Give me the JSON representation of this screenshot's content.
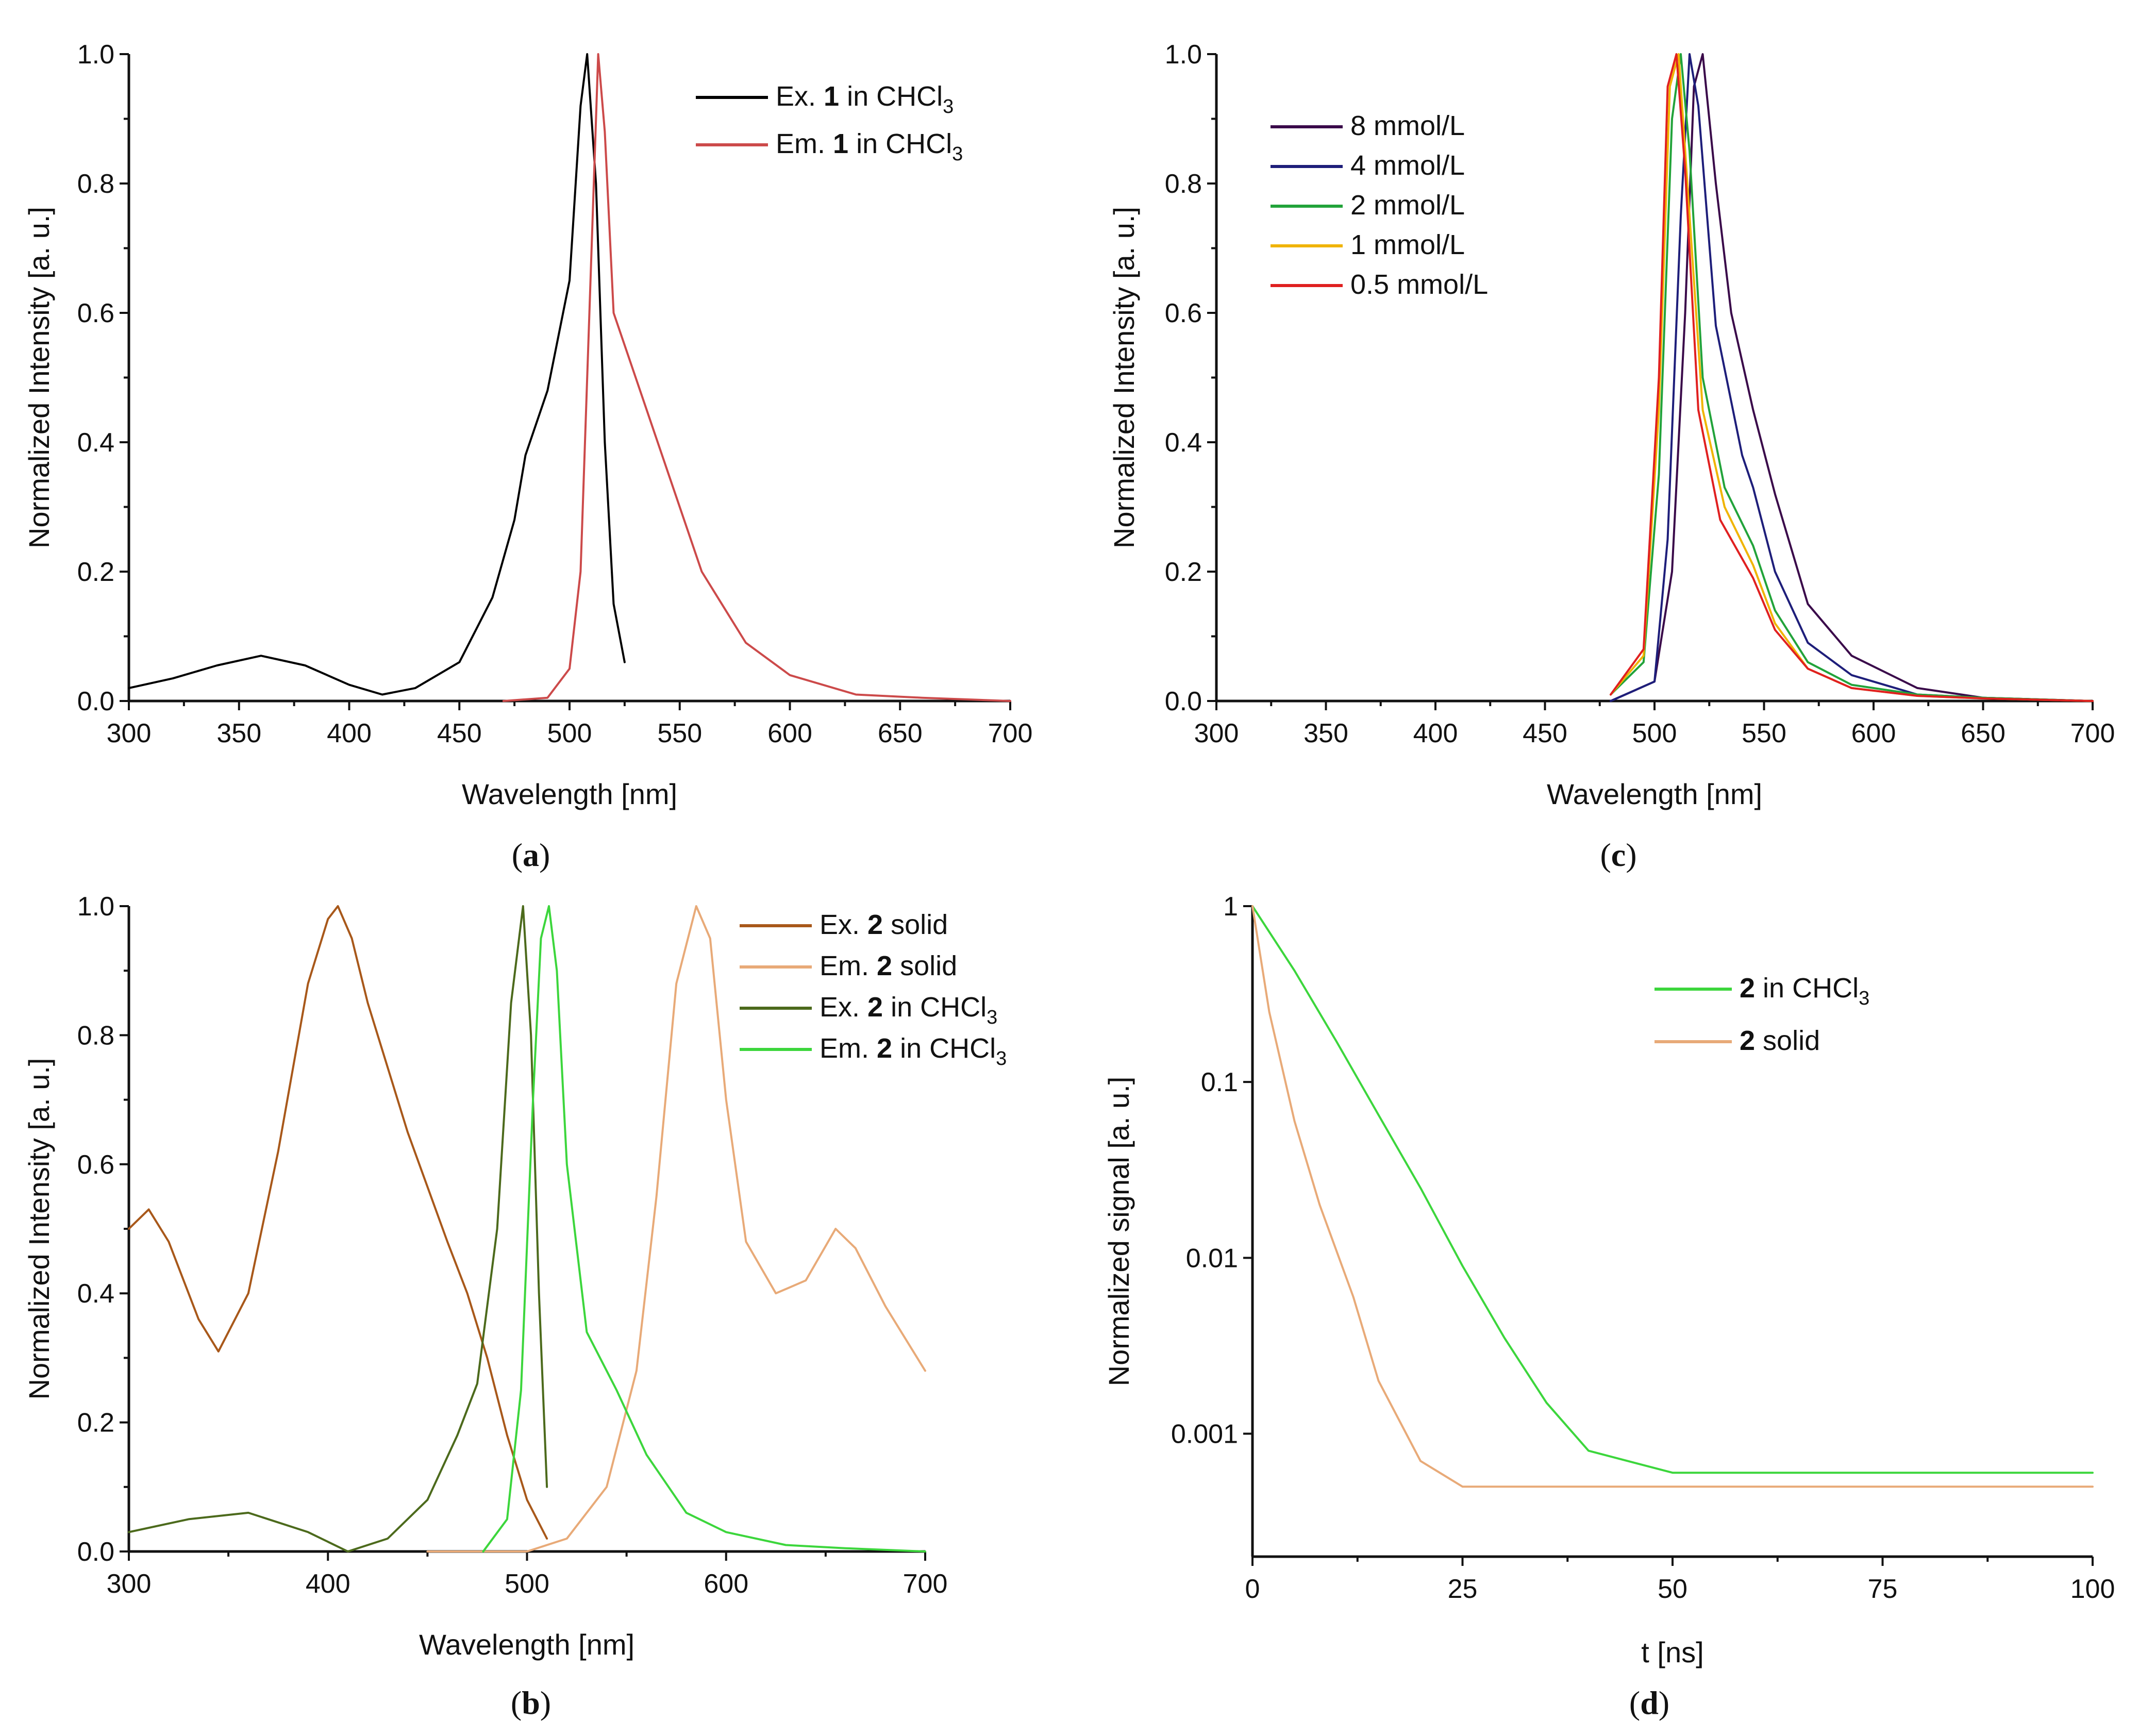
{
  "chart_data": [
    {
      "panel": "a",
      "type": "line",
      "xlabel": "Wavelength [nm]",
      "ylabel": "Normalized Intensity [a. u.]",
      "xlim": [
        300,
        700
      ],
      "ylim": [
        0.0,
        1.0
      ],
      "xticks": [
        300,
        350,
        400,
        450,
        500,
        550,
        600,
        650,
        700
      ],
      "yticks": [
        0.0,
        0.2,
        0.4,
        0.6,
        0.8,
        1.0
      ],
      "ytick_labels": [
        "0.0",
        "0.2",
        "0.4",
        "0.6",
        "0.8",
        "1.0"
      ],
      "legend_position": "top-right",
      "series": [
        {
          "legend": {
            "prefix": "Ex. ",
            "bold": "1",
            "suffix": " in CHCl",
            "sub": "3"
          },
          "color": "#000000",
          "x": [
            300,
            320,
            340,
            360,
            380,
            400,
            415,
            430,
            450,
            465,
            475,
            480,
            490,
            500,
            505,
            508,
            512,
            516,
            520,
            525
          ],
          "y": [
            0.02,
            0.035,
            0.055,
            0.07,
            0.055,
            0.025,
            0.01,
            0.02,
            0.06,
            0.16,
            0.28,
            0.38,
            0.48,
            0.65,
            0.92,
            1.0,
            0.8,
            0.4,
            0.15,
            0.06
          ]
        },
        {
          "legend": {
            "prefix": "Em. ",
            "bold": "1",
            "suffix": " in CHCl",
            "sub": "3"
          },
          "color": "#cc4a4a",
          "x": [
            470,
            490,
            500,
            505,
            510,
            513,
            516,
            520,
            530,
            545,
            560,
            580,
            600,
            630,
            660,
            700
          ],
          "y": [
            0.0,
            0.005,
            0.05,
            0.2,
            0.7,
            1.0,
            0.88,
            0.6,
            0.5,
            0.35,
            0.2,
            0.09,
            0.04,
            0.01,
            0.005,
            0.0
          ]
        }
      ]
    },
    {
      "panel": "c",
      "type": "line",
      "xlabel": "Wavelength [nm]",
      "ylabel": "Normalized Intensity [a. u.]",
      "xlim": [
        300,
        700
      ],
      "ylim": [
        0.0,
        1.0
      ],
      "xticks": [
        300,
        350,
        400,
        450,
        500,
        550,
        600,
        650,
        700
      ],
      "yticks": [
        0.0,
        0.2,
        0.4,
        0.6,
        0.8,
        1.0
      ],
      "ytick_labels": [
        "0.0",
        "0.2",
        "0.4",
        "0.6",
        "0.8",
        "1.0"
      ],
      "legend_position": "top-left",
      "series": [
        {
          "legend": {
            "prefix": "8 mmol/L",
            "bold": "",
            "suffix": "",
            "sub": ""
          },
          "color": "#3a0a4a",
          "x": [
            480,
            500,
            508,
            514,
            518,
            522,
            528,
            535,
            545,
            555,
            570,
            590,
            620,
            650,
            700
          ],
          "y": [
            0.0,
            0.03,
            0.2,
            0.6,
            0.95,
            1.0,
            0.8,
            0.6,
            0.45,
            0.32,
            0.15,
            0.07,
            0.02,
            0.005,
            0.0
          ]
        },
        {
          "legend": {
            "prefix": "4 mmol/L",
            "bold": "",
            "suffix": "",
            "sub": ""
          },
          "color": "#1e1e7a",
          "x": [
            480,
            500,
            506,
            512,
            516,
            520,
            528,
            540,
            545,
            555,
            570,
            590,
            620,
            650,
            700
          ],
          "y": [
            0.0,
            0.03,
            0.25,
            0.75,
            1.0,
            0.92,
            0.58,
            0.38,
            0.33,
            0.2,
            0.09,
            0.04,
            0.01,
            0.005,
            0.0
          ]
        },
        {
          "legend": {
            "prefix": "2 mmol/L",
            "bold": "",
            "suffix": "",
            "sub": ""
          },
          "color": "#22a33a",
          "x": [
            480,
            495,
            502,
            508,
            512,
            516,
            522,
            532,
            545,
            555,
            570,
            590,
            620,
            650,
            700
          ],
          "y": [
            0.01,
            0.06,
            0.35,
            0.9,
            1.0,
            0.85,
            0.5,
            0.33,
            0.24,
            0.14,
            0.06,
            0.025,
            0.01,
            0.005,
            0.0
          ]
        },
        {
          "legend": {
            "prefix": "1 mmol/L",
            "bold": "",
            "suffix": "",
            "sub": ""
          },
          "color": "#f0b400",
          "x": [
            480,
            495,
            502,
            507,
            511,
            515,
            522,
            532,
            545,
            555,
            570,
            590,
            620,
            650,
            700
          ],
          "y": [
            0.01,
            0.07,
            0.45,
            0.95,
            1.0,
            0.8,
            0.45,
            0.3,
            0.21,
            0.12,
            0.05,
            0.02,
            0.008,
            0.004,
            0.0
          ]
        },
        {
          "legend": {
            "prefix": "0.5 mmol/L",
            "bold": "",
            "suffix": "",
            "sub": ""
          },
          "color": "#e02020",
          "x": [
            480,
            495,
            502,
            506,
            510,
            514,
            520,
            530,
            545,
            555,
            570,
            590,
            620,
            650,
            700
          ],
          "y": [
            0.01,
            0.08,
            0.5,
            0.95,
            1.0,
            0.82,
            0.45,
            0.28,
            0.19,
            0.11,
            0.05,
            0.02,
            0.008,
            0.004,
            0.0
          ]
        }
      ]
    },
    {
      "panel": "b",
      "type": "line",
      "xlabel": "Wavelength [nm]",
      "ylabel": "Normalized Intensity [a. u.]",
      "xlim": [
        300,
        700
      ],
      "ylim": [
        0.0,
        1.0
      ],
      "xticks": [
        300,
        400,
        500,
        600,
        700
      ],
      "yticks": [
        0.0,
        0.2,
        0.4,
        0.6,
        0.8,
        1.0
      ],
      "ytick_labels": [
        "0.0",
        "0.2",
        "0.4",
        "0.6",
        "0.8",
        "1.0"
      ],
      "legend_position": "top-right",
      "series": [
        {
          "legend": {
            "prefix": "Ex.  ",
            "bold": "2",
            "suffix": " solid",
            "sub": ""
          },
          "color": "#a8581a",
          "x": [
            300,
            310,
            320,
            335,
            345,
            360,
            375,
            390,
            400,
            405,
            412,
            420,
            440,
            460,
            470,
            480,
            490,
            500,
            510
          ],
          "y": [
            0.5,
            0.53,
            0.48,
            0.36,
            0.31,
            0.4,
            0.62,
            0.88,
            0.98,
            1.0,
            0.95,
            0.85,
            0.65,
            0.48,
            0.4,
            0.3,
            0.18,
            0.08,
            0.02
          ]
        },
        {
          "legend": {
            "prefix": "Em. ",
            "bold": "2",
            "suffix": " solid",
            "sub": ""
          },
          "color": "#e8aa78",
          "x": [
            450,
            500,
            520,
            540,
            555,
            565,
            575,
            585,
            592,
            600,
            610,
            625,
            640,
            655,
            665,
            680,
            700
          ],
          "y": [
            0.0,
            0.0,
            0.02,
            0.1,
            0.28,
            0.55,
            0.88,
            1.0,
            0.95,
            0.7,
            0.48,
            0.4,
            0.42,
            0.5,
            0.47,
            0.38,
            0.28
          ]
        },
        {
          "legend": {
            "prefix": "Ex.  ",
            "bold": "2",
            "suffix": " in CHCl",
            "sub": "3"
          },
          "color": "#4c6a1c",
          "x": [
            300,
            330,
            360,
            390,
            410,
            430,
            450,
            465,
            475,
            485,
            492,
            498,
            502,
            506,
            510
          ],
          "y": [
            0.03,
            0.05,
            0.06,
            0.03,
            0.0,
            0.02,
            0.08,
            0.18,
            0.26,
            0.5,
            0.85,
            1.0,
            0.8,
            0.4,
            0.1
          ]
        },
        {
          "legend": {
            "prefix": "Em. ",
            "bold": "2",
            "suffix": " in CHCl",
            "sub": "3"
          },
          "color": "#3cd63c",
          "x": [
            478,
            490,
            497,
            503,
            507,
            511,
            515,
            520,
            530,
            545,
            560,
            580,
            600,
            630,
            660,
            700
          ],
          "y": [
            0.0,
            0.05,
            0.25,
            0.7,
            0.95,
            1.0,
            0.9,
            0.6,
            0.34,
            0.25,
            0.15,
            0.06,
            0.03,
            0.01,
            0.005,
            0.0
          ]
        }
      ]
    },
    {
      "panel": "d",
      "type": "line",
      "yscale": "log",
      "xlabel": "t [ns]",
      "ylabel": "Normalized signal [a. u.]",
      "xlim": [
        0,
        100
      ],
      "ylim": [
        0.0002,
        1.0
      ],
      "xticks": [
        0,
        25,
        50,
        75,
        100
      ],
      "yticks": [
        0.001,
        0.01,
        0.1,
        1
      ],
      "ytick_labels": [
        "0.001",
        "0.01",
        "0.1",
        "1"
      ],
      "legend_position": "top-right",
      "series": [
        {
          "legend": {
            "prefix": "",
            "bold": "2",
            "suffix": " in CHCl",
            "sub": "3"
          },
          "color": "#3cd63c",
          "x": [
            0,
            5,
            10,
            15,
            20,
            25,
            30,
            35,
            40,
            50,
            60,
            75,
            100
          ],
          "y": [
            1.0,
            0.43,
            0.17,
            0.065,
            0.025,
            0.009,
            0.0035,
            0.0015,
            0.0008,
            0.0006,
            0.0006,
            0.0006,
            0.0006
          ]
        },
        {
          "legend": {
            "prefix": "",
            "bold": "2",
            "suffix": " solid",
            "sub": ""
          },
          "color": "#e8aa78",
          "x": [
            0,
            2,
            5,
            8,
            12,
            15,
            20,
            25,
            30,
            50,
            75,
            100
          ],
          "y": [
            1.0,
            0.25,
            0.06,
            0.02,
            0.006,
            0.002,
            0.0007,
            0.0005,
            0.0005,
            0.0005,
            0.0005,
            0.0005
          ]
        }
      ]
    }
  ],
  "panel_captions": [
    "(a)",
    "(c)",
    "(b)",
    "(d)"
  ]
}
